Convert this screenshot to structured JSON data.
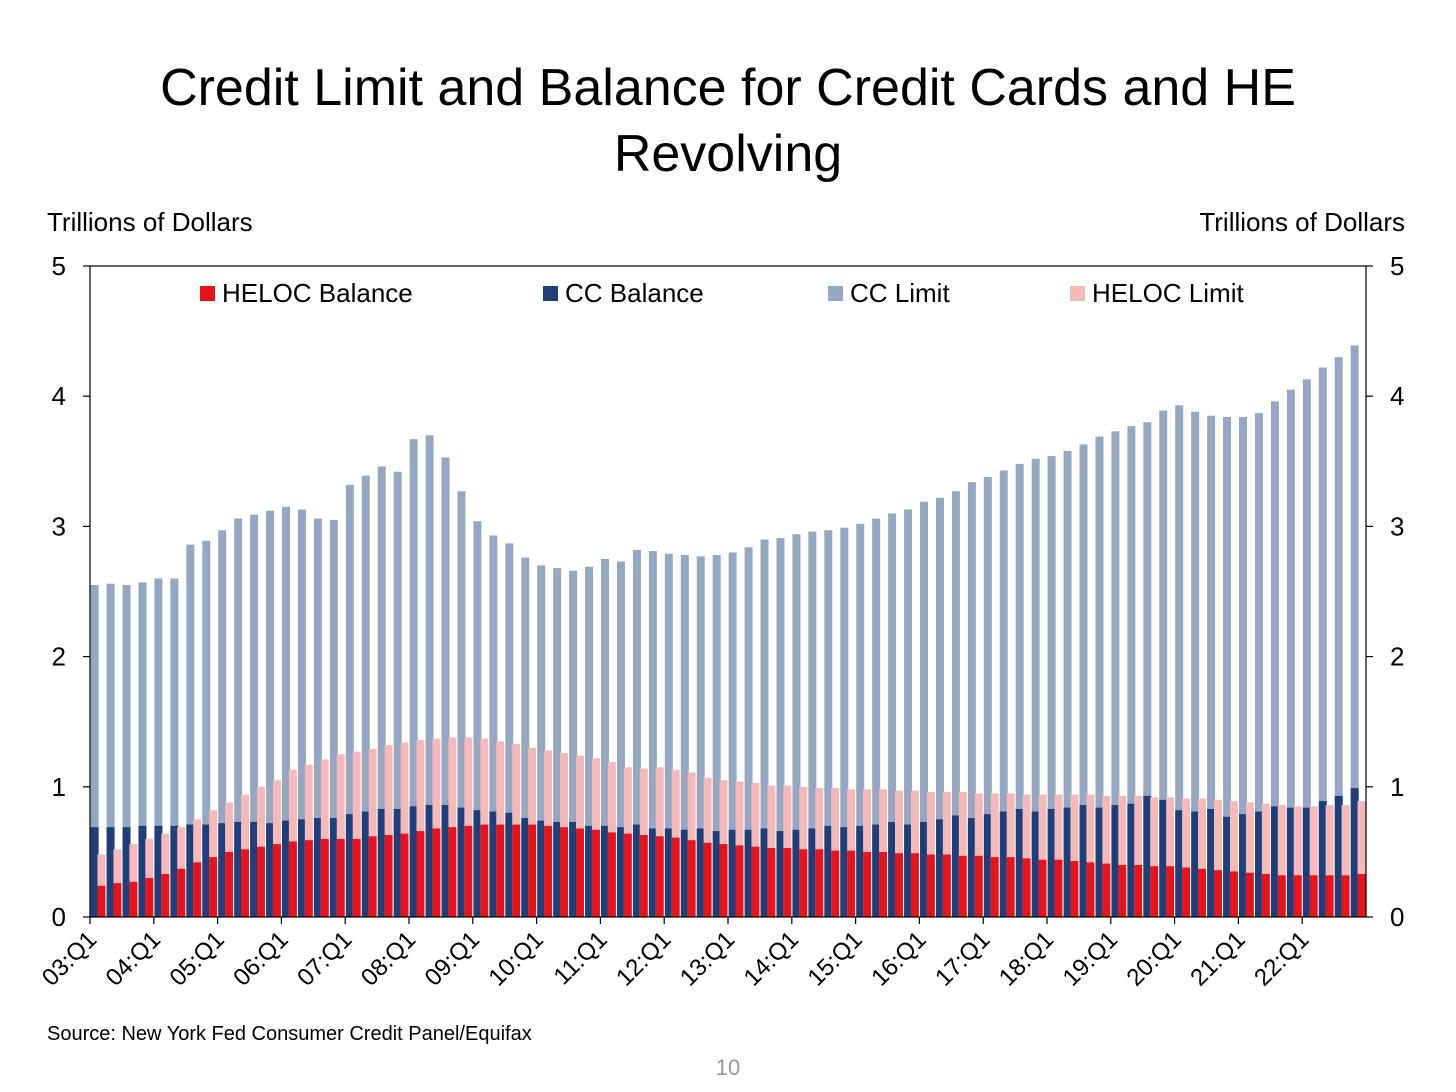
{
  "chart_data": {
    "type": "bar",
    "title": "Credit Limit and Balance for Credit Cards and HE Revolving",
    "y_axis_label": "Trillions of Dollars",
    "y2_axis_label": "Trillions of Dollars",
    "source": "Source: New York Fed Consumer Credit Panel/Equifax",
    "page_number": "10",
    "categories": [
      "03:Q1",
      null,
      null,
      null,
      "04:Q1",
      null,
      null,
      null,
      "05:Q1",
      null,
      null,
      null,
      "06:Q1",
      null,
      null,
      null,
      "07:Q1",
      null,
      null,
      null,
      "08:Q1",
      null,
      null,
      null,
      "09:Q1",
      null,
      null,
      null,
      "10:Q1",
      null,
      null,
      null,
      "11:Q1",
      null,
      null,
      null,
      "12:Q1",
      null,
      null,
      null,
      "13:Q1",
      null,
      null,
      null,
      "14:Q1",
      null,
      null,
      null,
      "15:Q1",
      null,
      null,
      null,
      "16:Q1",
      null,
      null,
      null,
      "17:Q1",
      null,
      null,
      null,
      "18:Q1",
      null,
      null,
      null,
      "19:Q1",
      null,
      null,
      null,
      "20:Q1",
      null,
      null,
      null,
      "21:Q1",
      null,
      null,
      null,
      "22:Q1",
      null,
      null,
      null
    ],
    "series": [
      {
        "name": "HELOC Balance",
        "color": "#e8141c",
        "values": [
          0.24,
          0.26,
          0.27,
          0.3,
          0.33,
          0.37,
          0.42,
          0.46,
          0.5,
          0.52,
          0.54,
          0.56,
          0.58,
          0.59,
          0.6,
          0.6,
          0.6,
          0.62,
          0.63,
          0.64,
          0.66,
          0.68,
          0.69,
          0.7,
          0.71,
          0.71,
          0.71,
          0.71,
          0.7,
          0.69,
          0.68,
          0.67,
          0.65,
          0.64,
          0.63,
          0.62,
          0.61,
          0.59,
          0.57,
          0.56,
          0.55,
          0.54,
          0.53,
          0.53,
          0.52,
          0.52,
          0.51,
          0.51,
          0.5,
          0.5,
          0.49,
          0.49,
          0.48,
          0.48,
          0.47,
          0.47,
          0.46,
          0.46,
          0.45,
          0.44,
          0.44,
          0.43,
          0.42,
          0.41,
          0.4,
          0.4,
          0.39,
          0.39,
          0.38,
          0.37,
          0.36,
          0.35,
          0.34,
          0.33,
          0.32,
          0.32,
          0.32,
          0.32,
          0.32,
          0.33
        ]
      },
      {
        "name": "CC Balance",
        "color": "#1f3f7a",
        "values": [
          0.69,
          0.69,
          0.69,
          0.7,
          0.7,
          0.7,
          0.71,
          0.71,
          0.72,
          0.73,
          0.73,
          0.72,
          0.74,
          0.75,
          0.76,
          0.76,
          0.79,
          0.81,
          0.83,
          0.83,
          0.85,
          0.86,
          0.86,
          0.84,
          0.82,
          0.81,
          0.8,
          0.76,
          0.74,
          0.73,
          0.73,
          0.7,
          0.7,
          0.69,
          0.71,
          0.68,
          0.68,
          0.67,
          0.68,
          0.66,
          0.67,
          0.67,
          0.68,
          0.66,
          0.67,
          0.68,
          0.7,
          0.69,
          0.7,
          0.71,
          0.73,
          0.71,
          0.73,
          0.75,
          0.78,
          0.76,
          0.79,
          0.81,
          0.83,
          0.81,
          0.83,
          0.84,
          0.86,
          0.84,
          0.86,
          0.87,
          0.93,
          0.9,
          0.82,
          0.81,
          0.83,
          0.77,
          0.79,
          0.81,
          0.85,
          0.84,
          0.84,
          0.89,
          0.93,
          0.99
        ]
      },
      {
        "name": "CC Limit",
        "color": "#95a7c2",
        "values": [
          2.55,
          2.56,
          2.55,
          2.57,
          2.6,
          2.6,
          2.86,
          2.89,
          2.97,
          3.06,
          3.09,
          3.12,
          3.15,
          3.13,
          3.06,
          3.05,
          3.32,
          3.39,
          3.46,
          3.42,
          3.67,
          3.7,
          3.53,
          3.27,
          3.04,
          2.93,
          2.87,
          2.76,
          2.7,
          2.68,
          2.66,
          2.69,
          2.75,
          2.73,
          2.82,
          2.81,
          2.79,
          2.78,
          2.77,
          2.78,
          2.8,
          2.84,
          2.9,
          2.91,
          2.94,
          2.96,
          2.97,
          2.99,
          3.02,
          3.06,
          3.1,
          3.13,
          3.19,
          3.22,
          3.27,
          3.34,
          3.38,
          3.43,
          3.48,
          3.52,
          3.54,
          3.58,
          3.63,
          3.69,
          3.73,
          3.77,
          3.8,
          3.89,
          3.93,
          3.88,
          3.85,
          3.84,
          3.84,
          3.87,
          3.96,
          4.05,
          4.13,
          4.22,
          4.3,
          4.39
        ]
      },
      {
        "name": "HELOC Limit",
        "color": "#f5b9b8",
        "values": [
          0.48,
          0.52,
          0.56,
          0.6,
          0.64,
          0.69,
          0.75,
          0.82,
          0.88,
          0.94,
          1.0,
          1.05,
          1.13,
          1.17,
          1.21,
          1.25,
          1.27,
          1.29,
          1.32,
          1.34,
          1.36,
          1.37,
          1.38,
          1.38,
          1.37,
          1.35,
          1.33,
          1.3,
          1.28,
          1.26,
          1.24,
          1.22,
          1.19,
          1.15,
          1.14,
          1.15,
          1.13,
          1.11,
          1.07,
          1.05,
          1.04,
          1.03,
          1.01,
          1.01,
          1.0,
          0.99,
          0.99,
          0.98,
          0.98,
          0.98,
          0.97,
          0.97,
          0.96,
          0.96,
          0.96,
          0.95,
          0.95,
          0.95,
          0.94,
          0.94,
          0.94,
          0.94,
          0.94,
          0.93,
          0.93,
          0.93,
          0.92,
          0.92,
          0.91,
          0.91,
          0.9,
          0.89,
          0.88,
          0.87,
          0.86,
          0.85,
          0.85,
          0.86,
          0.86,
          0.89
        ]
      }
    ],
    "ylim": [
      0,
      5
    ],
    "yticks": [
      0,
      1,
      2,
      3,
      4,
      5
    ],
    "y2lim": [
      0,
      5
    ],
    "y2ticks": [
      0,
      1,
      2,
      3,
      4,
      5
    ],
    "legend": "top"
  }
}
